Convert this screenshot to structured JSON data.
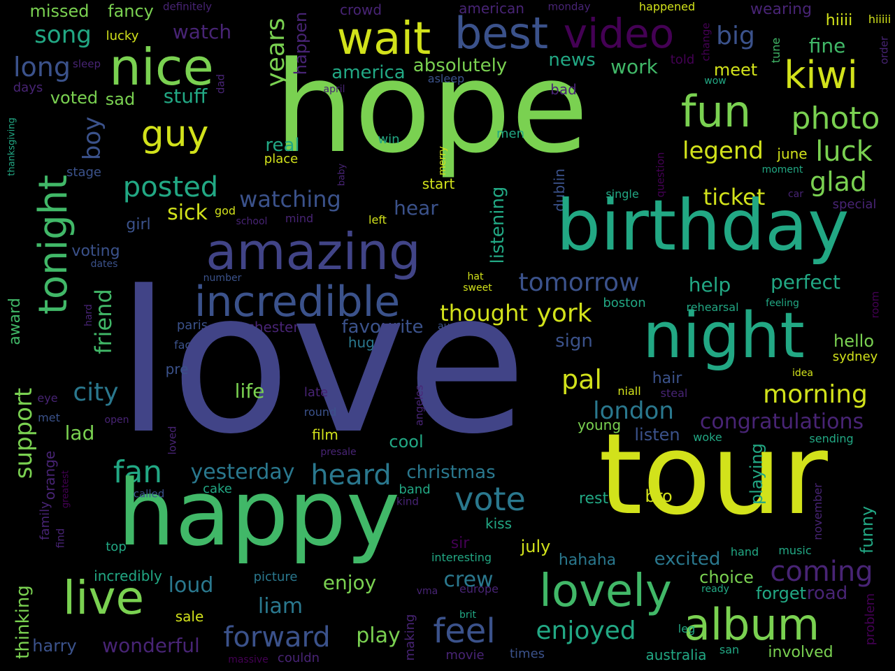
{
  "palette": {
    "background": "#000000",
    "yellow": "#d2e21b",
    "lime": "#7ad151",
    "green": "#41b868",
    "teal": "#22a884",
    "cyan": "#2a788e",
    "blue": "#414487",
    "indigo": "#3b528b",
    "purple": "#440154",
    "violet": "#482475"
  },
  "words": [
    {
      "text": "missed"
    },
    {
      "text": "fancy"
    },
    {
      "text": "definitely"
    },
    {
      "text": "crowd"
    },
    {
      "text": "american"
    },
    {
      "text": "monday"
    },
    {
      "text": "happened"
    },
    {
      "text": "wearing"
    },
    {
      "text": "hiiii"
    },
    {
      "text": "hiiiii"
    },
    {
      "text": "song"
    },
    {
      "text": "lucky"
    },
    {
      "text": "watch"
    },
    {
      "text": "hope"
    },
    {
      "text": "wait"
    },
    {
      "text": "best"
    },
    {
      "text": "video"
    },
    {
      "text": "big"
    },
    {
      "text": "fine"
    },
    {
      "text": "tune"
    },
    {
      "text": "nice"
    },
    {
      "text": "long"
    },
    {
      "text": "sleep"
    },
    {
      "text": "years"
    },
    {
      "text": "happen"
    },
    {
      "text": "america"
    },
    {
      "text": "absolutely"
    },
    {
      "text": "news"
    },
    {
      "text": "work"
    },
    {
      "text": "told"
    },
    {
      "text": "change"
    },
    {
      "text": "meet"
    },
    {
      "text": "kiwi"
    },
    {
      "text": "order"
    },
    {
      "text": "days"
    },
    {
      "text": "voted"
    },
    {
      "text": "sad"
    },
    {
      "text": "stuff"
    },
    {
      "text": "dad"
    },
    {
      "text": "april"
    },
    {
      "text": "asleep"
    },
    {
      "text": "bad"
    },
    {
      "text": "wow"
    },
    {
      "text": "fun"
    },
    {
      "text": "photo"
    },
    {
      "text": "tonight"
    },
    {
      "text": "boy"
    },
    {
      "text": "guy"
    },
    {
      "text": "real"
    },
    {
      "text": "place"
    },
    {
      "text": "win"
    },
    {
      "text": "men"
    },
    {
      "text": "merry"
    },
    {
      "text": "legend"
    },
    {
      "text": "june"
    },
    {
      "text": "luck"
    },
    {
      "text": "thanksgiving"
    },
    {
      "text": "stage"
    },
    {
      "text": "baby"
    },
    {
      "text": "question"
    },
    {
      "text": "moment"
    },
    {
      "text": "posted"
    },
    {
      "text": "start"
    },
    {
      "text": "dublin"
    },
    {
      "text": "single"
    },
    {
      "text": "ticket"
    },
    {
      "text": "car"
    },
    {
      "text": "glad"
    },
    {
      "text": "sick"
    },
    {
      "text": "god"
    },
    {
      "text": "watching"
    },
    {
      "text": "hear"
    },
    {
      "text": "special"
    },
    {
      "text": "girl"
    },
    {
      "text": "school"
    },
    {
      "text": "mind"
    },
    {
      "text": "left"
    },
    {
      "text": "birthday"
    },
    {
      "text": "amazing"
    },
    {
      "text": "listening"
    },
    {
      "text": "voting"
    },
    {
      "text": "dates"
    },
    {
      "text": "number"
    },
    {
      "text": "hat"
    },
    {
      "text": "sweet"
    },
    {
      "text": "tomorrow"
    },
    {
      "text": "help"
    },
    {
      "text": "perfect"
    },
    {
      "text": "incredible"
    },
    {
      "text": "friend"
    },
    {
      "text": "award"
    },
    {
      "text": "hard"
    },
    {
      "text": "boston"
    },
    {
      "text": "rehearsal"
    },
    {
      "text": "feeling"
    },
    {
      "text": "room"
    },
    {
      "text": "thought"
    },
    {
      "text": "york"
    },
    {
      "text": "night"
    },
    {
      "text": "paris"
    },
    {
      "text": "manchester"
    },
    {
      "text": "favourite"
    },
    {
      "text": "august"
    },
    {
      "text": "face"
    },
    {
      "text": "huge"
    },
    {
      "text": "sign"
    },
    {
      "text": "hello"
    },
    {
      "text": "love"
    },
    {
      "text": "sydney"
    },
    {
      "text": "pre"
    },
    {
      "text": "support"
    },
    {
      "text": "city"
    },
    {
      "text": "life"
    },
    {
      "text": "pal"
    },
    {
      "text": "niall"
    },
    {
      "text": "hair"
    },
    {
      "text": "idea"
    },
    {
      "text": "late"
    },
    {
      "text": "steal"
    },
    {
      "text": "morning"
    },
    {
      "text": "eye"
    },
    {
      "text": "angeles"
    },
    {
      "text": "london"
    },
    {
      "text": "round"
    },
    {
      "text": "met"
    },
    {
      "text": "open"
    },
    {
      "text": "congratulations"
    },
    {
      "text": "lad"
    },
    {
      "text": "young"
    },
    {
      "text": "film"
    },
    {
      "text": "listen"
    },
    {
      "text": "woke"
    },
    {
      "text": "sending"
    },
    {
      "text": "orange"
    },
    {
      "text": "loved"
    },
    {
      "text": "cool"
    },
    {
      "text": "presale"
    },
    {
      "text": "greatest"
    },
    {
      "text": "fan"
    },
    {
      "text": "tour"
    },
    {
      "text": "playing"
    },
    {
      "text": "yesterday"
    },
    {
      "text": "heard"
    },
    {
      "text": "christmas"
    },
    {
      "text": "family"
    },
    {
      "text": "cake"
    },
    {
      "text": "band"
    },
    {
      "text": "happy"
    },
    {
      "text": "bro"
    },
    {
      "text": "called"
    },
    {
      "text": "kind"
    },
    {
      "text": "vote"
    },
    {
      "text": "rest"
    },
    {
      "text": "find"
    },
    {
      "text": "november"
    },
    {
      "text": "funny"
    },
    {
      "text": "kiss"
    },
    {
      "text": "top"
    },
    {
      "text": "sir"
    },
    {
      "text": "july"
    },
    {
      "text": "hand"
    },
    {
      "text": "music"
    },
    {
      "text": "interesting"
    },
    {
      "text": "hahaha"
    },
    {
      "text": "excited"
    },
    {
      "text": "coming"
    },
    {
      "text": "incredibly"
    },
    {
      "text": "picture"
    },
    {
      "text": "crew"
    },
    {
      "text": "choice"
    },
    {
      "text": "thinking"
    },
    {
      "text": "live"
    },
    {
      "text": "loud"
    },
    {
      "text": "enjoy"
    },
    {
      "text": "lovely"
    },
    {
      "text": "ready"
    },
    {
      "text": "forget"
    },
    {
      "text": "road"
    },
    {
      "text": "vma"
    },
    {
      "text": "europe"
    },
    {
      "text": "liam"
    },
    {
      "text": "sale"
    },
    {
      "text": "brit"
    },
    {
      "text": "album"
    },
    {
      "text": "making"
    },
    {
      "text": "feel"
    },
    {
      "text": "leg"
    },
    {
      "text": "problem"
    },
    {
      "text": "harry"
    },
    {
      "text": "wonderful"
    },
    {
      "text": "forward"
    },
    {
      "text": "play"
    },
    {
      "text": "enjoyed"
    },
    {
      "text": "san"
    },
    {
      "text": "involved"
    },
    {
      "text": "massive"
    },
    {
      "text": "couldn"
    },
    {
      "text": "movie"
    },
    {
      "text": "times"
    },
    {
      "text": "australia"
    }
  ]
}
